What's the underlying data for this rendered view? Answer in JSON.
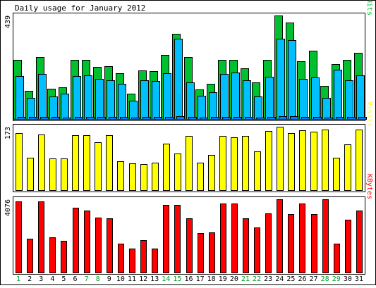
{
  "chart_data": {
    "type": "bar",
    "title": "Daily usage for January 2012",
    "categories": [
      "1",
      "2",
      "3",
      "4",
      "5",
      "6",
      "7",
      "8",
      "9",
      "10",
      "11",
      "12",
      "13",
      "14",
      "15",
      "16",
      "17",
      "18",
      "19",
      "20",
      "21",
      "22",
      "23",
      "24",
      "25",
      "26",
      "27",
      "28",
      "29",
      "30",
      "31"
    ],
    "weekend_days": [
      "1",
      "7",
      "8",
      "14",
      "15",
      "21",
      "22",
      "28",
      "29"
    ],
    "panels": [
      {
        "name": "hits",
        "ymax_label": "439",
        "ymax": 439,
        "side_label": [
          "Pages",
          "/",
          "Files",
          "/",
          "Hits"
        ],
        "series": [
          {
            "name": "Hits",
            "color": "#00c030",
            "values": [
              250,
              120,
              262,
              128,
              135,
              250,
              252,
              222,
              223,
              195,
              108,
              205,
              202,
              272,
              360,
              263,
              125,
              148,
              250,
              250,
              215,
              155,
              250,
              439,
              410,
              245,
              290,
              140,
              233,
              250,
              280
            ]
          },
          {
            "name": "Files",
            "color": "#00bfff",
            "values": [
              182,
              90,
              190,
              95,
              108,
              182,
              185,
              170,
              165,
              150,
              78,
              165,
              160,
              195,
              340,
              155,
              100,
              112,
              190,
              196,
              165,
              95,
              180,
              340,
              335,
              170,
              175,
              90,
              210,
              165,
              185
            ]
          },
          {
            "name": "Pages",
            "color": "#0080ff",
            "values": [
              9,
              8,
              10,
              8,
              7,
              9,
              9,
              8,
              8,
              8,
              6,
              8,
              8,
              9,
              11,
              9,
              7,
              8,
              9,
              9,
              8,
              7,
              9,
              12,
              12,
              9,
              9,
              7,
              9,
              9,
              10
            ]
          }
        ]
      },
      {
        "name": "visits",
        "ymax_label": "173",
        "ymax": 173,
        "side_label": [
          "Visits"
        ],
        "series": [
          {
            "name": "Visits",
            "color": "#ffff00",
            "values": [
              155,
              88,
              152,
              87,
              87,
              150,
              150,
              130,
              150,
              78,
              73,
              72,
              75,
              127,
              100,
              148,
              75,
              96,
              148,
              145,
              148,
              106,
              162,
              173,
              155,
              163,
              160,
              165,
              88,
              125,
              165
            ]
          }
        ]
      },
      {
        "name": "kbytes",
        "ymax_label": "4076",
        "ymax": 4076,
        "side_label": [
          "KBytes"
        ],
        "series": [
          {
            "name": "KBytes",
            "color": "#ff0000",
            "values": [
              3950,
              1900,
              3950,
              1950,
              1750,
              3600,
              3450,
              3050,
              3000,
              1600,
              1350,
              1800,
              1350,
              3750,
              3750,
              3000,
              2200,
              2250,
              3850,
              3850,
              3000,
              2500,
              3300,
              4076,
              3250,
              3850,
              3250,
              4076,
              1600,
              2950,
              3450
            ]
          }
        ]
      }
    ]
  }
}
